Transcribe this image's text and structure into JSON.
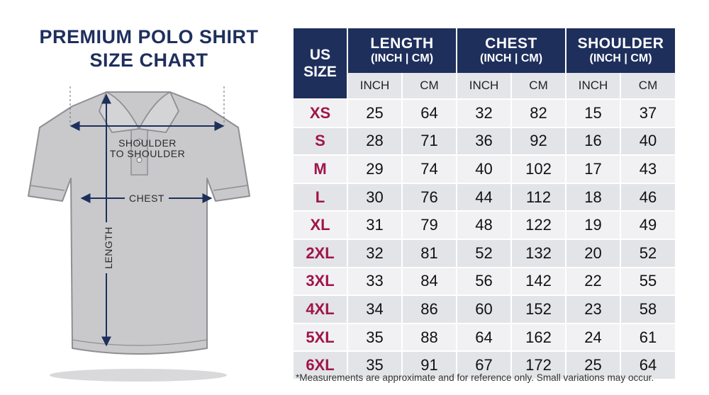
{
  "title": {
    "line1": "PREMIUM POLO SHIRT",
    "line2": "SIZE CHART"
  },
  "diagram": {
    "shoulder_line1": "SHOULDER",
    "shoulder_line2": "TO SHOULDER",
    "chest": "CHEST",
    "length": "LENGTH"
  },
  "colors": {
    "header_navy": "#1e2f5c",
    "size_label": "#a01548",
    "row_light": "#f1f1f3",
    "row_dark": "#e3e4e7",
    "shirt_gray": "#c9c9cb",
    "measure_line": "#1e2f5c"
  },
  "chart_data": {
    "type": "table",
    "header": {
      "size_col_line1": "US",
      "size_col_line2": "SIZE",
      "groups": [
        {
          "name": "LENGTH",
          "sub": "(INCH | CM)"
        },
        {
          "name": "CHEST",
          "sub": "(INCH | CM)"
        },
        {
          "name": "SHOULDER",
          "sub": "(INCH | CM)"
        }
      ],
      "units": [
        "INCH",
        "CM",
        "INCH",
        "CM",
        "INCH",
        "CM"
      ]
    },
    "rows": [
      {
        "size": "XS",
        "values": [
          "25",
          "64",
          "32",
          "82",
          "15",
          "37"
        ]
      },
      {
        "size": "S",
        "values": [
          "28",
          "71",
          "36",
          "92",
          "16",
          "40"
        ]
      },
      {
        "size": "M",
        "values": [
          "29",
          "74",
          "40",
          "102",
          "17",
          "43"
        ]
      },
      {
        "size": "L",
        "values": [
          "30",
          "76",
          "44",
          "112",
          "18",
          "46"
        ]
      },
      {
        "size": "XL",
        "values": [
          "31",
          "79",
          "48",
          "122",
          "19",
          "49"
        ]
      },
      {
        "size": "2XL",
        "values": [
          "32",
          "81",
          "52",
          "132",
          "20",
          "52"
        ]
      },
      {
        "size": "3XL",
        "values": [
          "33",
          "84",
          "56",
          "142",
          "22",
          "55"
        ]
      },
      {
        "size": "4XL",
        "values": [
          "34",
          "86",
          "60",
          "152",
          "23",
          "58"
        ]
      },
      {
        "size": "5XL",
        "values": [
          "35",
          "88",
          "64",
          "162",
          "24",
          "61"
        ]
      },
      {
        "size": "6XL",
        "values": [
          "35",
          "91",
          "67",
          "172",
          "25",
          "64"
        ]
      }
    ],
    "note": "*Measurements are approximate and for reference only. Small variations may occur."
  }
}
